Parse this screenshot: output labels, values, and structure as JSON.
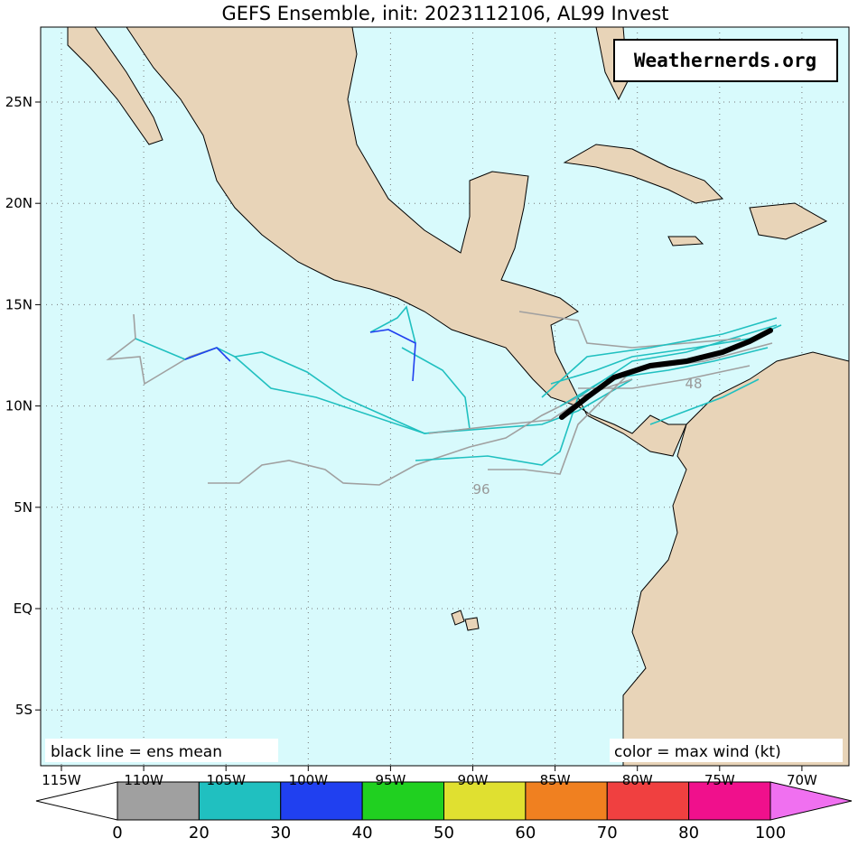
{
  "header": {
    "title": "GEFS Ensemble, init: 2023112106, AL99 Invest"
  },
  "watermark": "Weathernerds.org",
  "notes": {
    "left": "black line = ens mean",
    "right": "color = max wind (kt)"
  },
  "axes": {
    "x_labels": [
      "115W",
      "110W",
      "105W",
      "100W",
      "95W",
      "90W",
      "85W",
      "80W",
      "75W",
      "70W"
    ],
    "y_labels": [
      "25N",
      "20N",
      "15N",
      "10N",
      "5N",
      "EQ",
      "5S"
    ]
  },
  "track_labels": [
    "48",
    "96"
  ],
  "colorbar": {
    "colors": [
      "#a0a0a0",
      "#20c0c0",
      "#2040f0",
      "#20d020",
      "#e0e030",
      "#f08020",
      "#f04040",
      "#f0108c"
    ],
    "labels": [
      "0",
      "20",
      "30",
      "40",
      "50",
      "60",
      "70",
      "80",
      "100"
    ]
  }
}
